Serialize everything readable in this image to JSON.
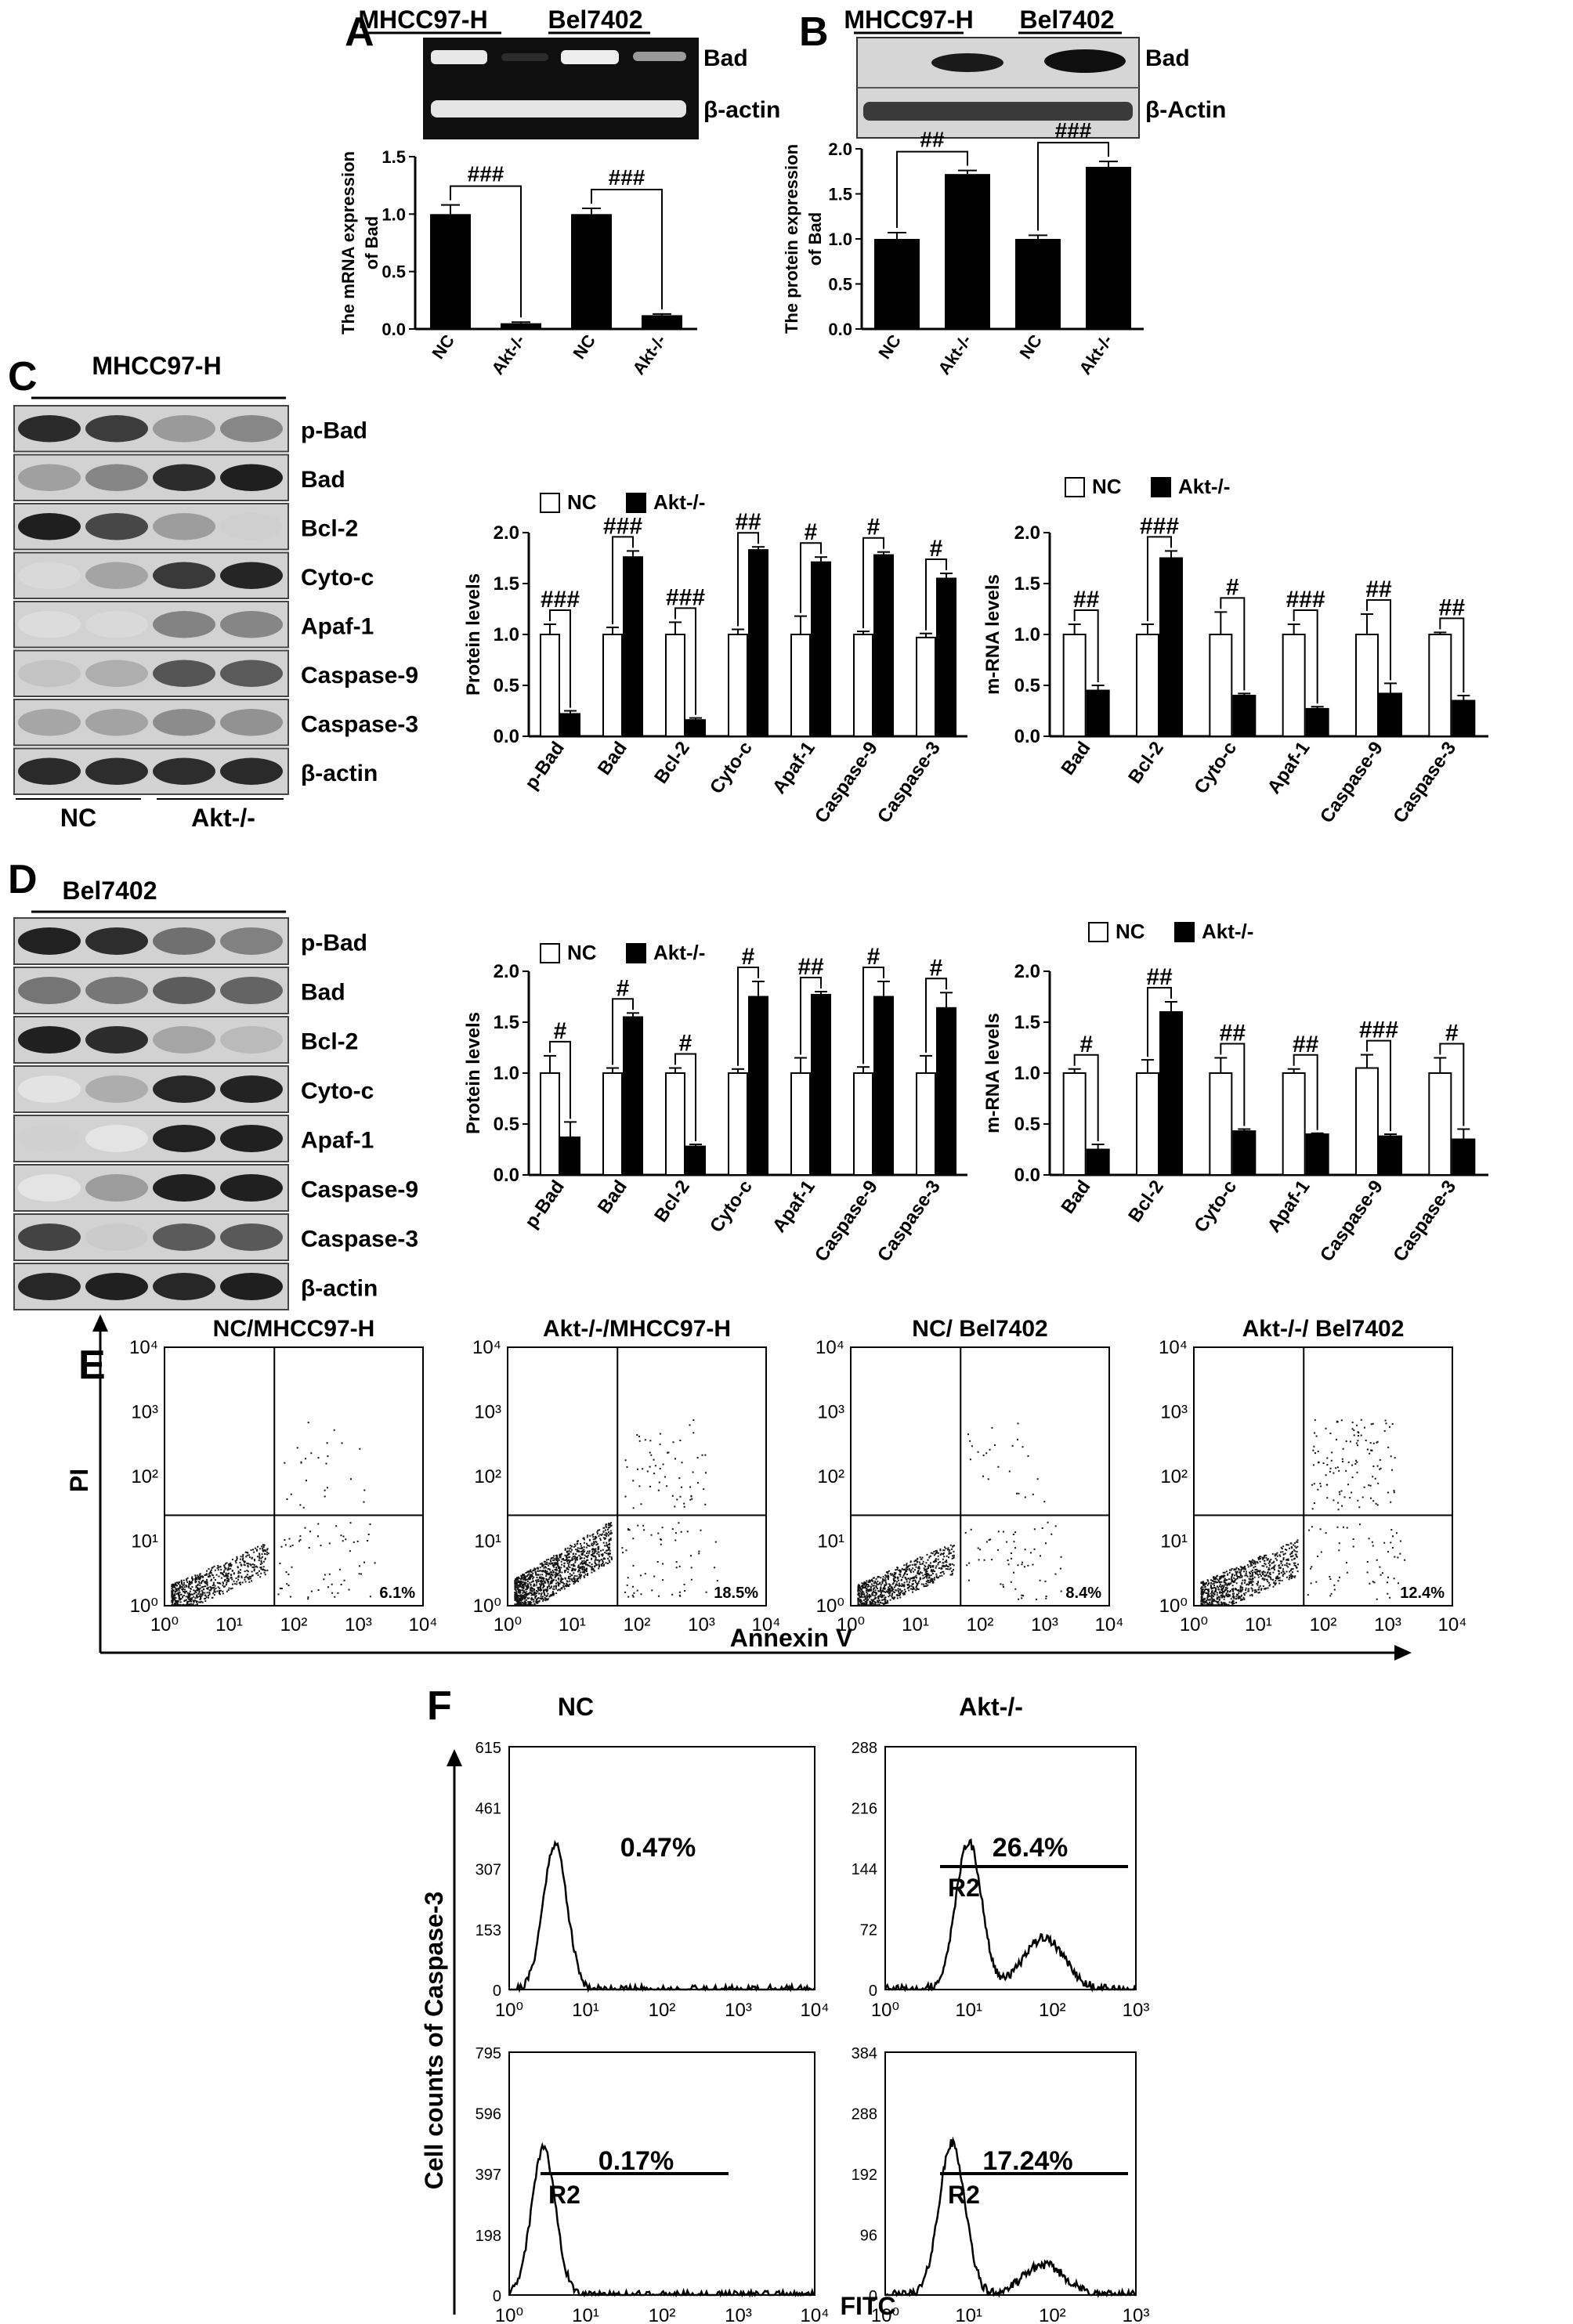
{
  "panel_letters": [
    "A",
    "B",
    "C",
    "D",
    "E",
    "F"
  ],
  "colors": {
    "ink": "#000000",
    "white": "#ffffff",
    "blot_dark": "#1a1a1a",
    "blot_light": "#d8d8d8",
    "gel_bg": "#111111"
  },
  "panel_A": {
    "cell_lines": [
      "MHCC97-H",
      "Bel7402"
    ],
    "band_labels": [
      "Bad",
      "β-actin"
    ],
    "chart_data": {
      "type": "bar",
      "categories": [
        "NC",
        "Akt-/-",
        "NC",
        "Akt-/-"
      ],
      "values": [
        1.0,
        0.05,
        1.0,
        0.12
      ],
      "errors": [
        0.08,
        0.01,
        0.05,
        0.01
      ],
      "ylabel": "The mRNA expression of Bad",
      "ylim": [
        0,
        1.5
      ],
      "yticks": [
        "0.0",
        "0.5",
        "1.0",
        "1.5"
      ],
      "annotations": [
        "###",
        "###"
      ]
    }
  },
  "panel_B": {
    "cell_lines": [
      "MHCC97-H",
      "Bel7402"
    ],
    "band_labels": [
      "Bad",
      "β-Actin"
    ],
    "chart_data": {
      "type": "bar",
      "categories": [
        "NC",
        "Akt-/-",
        "NC",
        "Akt-/-"
      ],
      "values": [
        1.0,
        1.72,
        1.0,
        1.8
      ],
      "errors": [
        0.07,
        0.04,
        0.04,
        0.06
      ],
      "ylabel": "The protein expression of Bad",
      "ylim": [
        0,
        2.0
      ],
      "yticks": [
        "0.0",
        "0.5",
        "1.0",
        "1.5",
        "2.0"
      ],
      "annotations": [
        "##",
        "###"
      ]
    }
  },
  "panel_C": {
    "title": "MHCC97-H",
    "blot_labels": [
      "p-Bad",
      "Bad",
      "Bcl-2",
      "Cyto-c",
      "Apaf-1",
      "Caspase-9",
      "Caspase-3",
      "β-actin"
    ],
    "group_labels": [
      "NC",
      "Akt-/-"
    ],
    "protein_chart": {
      "type": "bar",
      "legend": [
        "NC",
        "Akt-/-"
      ],
      "categories": [
        "p-Bad",
        "Bad",
        "Bcl-2",
        "Cyto-c",
        "Apaf-1",
        "Caspase-9",
        "Caspase-3"
      ],
      "series": [
        {
          "name": "NC",
          "values": [
            1.0,
            1.0,
            1.0,
            1.0,
            1.0,
            1.0,
            0.97
          ],
          "errors": [
            0.1,
            0.07,
            0.12,
            0.05,
            0.18,
            0.03,
            0.04
          ]
        },
        {
          "name": "Akt-/-",
          "values": [
            0.22,
            1.76,
            0.16,
            1.83,
            1.71,
            1.78,
            1.55
          ],
          "errors": [
            0.03,
            0.06,
            0.02,
            0.03,
            0.05,
            0.03,
            0.05
          ]
        }
      ],
      "ylabel": "Protein levels",
      "ylim": [
        0,
        2.0
      ],
      "yticks": [
        "0.0",
        "0.5",
        "1.0",
        "1.5",
        "2.0"
      ],
      "annotations": [
        "###",
        "###",
        "###",
        "##",
        "#",
        "#",
        "#"
      ]
    },
    "mrna_chart": {
      "type": "bar",
      "legend": [
        "NC",
        "Akt-/-"
      ],
      "categories": [
        "Bad",
        "Bcl-2",
        "Cyto-c",
        "Apaf-1",
        "Caspase-9",
        "Caspase-3"
      ],
      "series": [
        {
          "name": "NC",
          "values": [
            1.0,
            1.0,
            1.0,
            1.0,
            1.0,
            1.0
          ],
          "errors": [
            0.1,
            0.1,
            0.22,
            0.1,
            0.2,
            0.02
          ]
        },
        {
          "name": "Akt-/-",
          "values": [
            0.45,
            1.75,
            0.4,
            0.27,
            0.42,
            0.35
          ],
          "errors": [
            0.05,
            0.07,
            0.02,
            0.02,
            0.1,
            0.05
          ]
        }
      ],
      "ylabel": "m-RNA levels",
      "ylim": [
        0,
        2.0
      ],
      "yticks": [
        "0.0",
        "0.5",
        "1.0",
        "1.5",
        "2.0"
      ],
      "annotations": [
        "##",
        "###",
        "#",
        "###",
        "##",
        "##"
      ]
    }
  },
  "panel_D": {
    "title": "Bel7402",
    "blot_labels": [
      "p-Bad",
      "Bad",
      "Bcl-2",
      "Cyto-c",
      "Apaf-1",
      "Caspase-9",
      "Caspase-3",
      "β-actin"
    ],
    "protein_chart": {
      "type": "bar",
      "legend": [
        "NC",
        "Akt-/-"
      ],
      "categories": [
        "p-Bad",
        "Bad",
        "Bcl-2",
        "Cyto-c",
        "Apaf-1",
        "Caspase-9",
        "Caspase-3"
      ],
      "series": [
        {
          "name": "NC",
          "values": [
            1.0,
            1.0,
            1.0,
            1.0,
            1.0,
            1.0,
            1.0
          ],
          "errors": [
            0.17,
            0.05,
            0.05,
            0.04,
            0.15,
            0.06,
            0.17
          ]
        },
        {
          "name": "Akt-/-",
          "values": [
            0.37,
            1.55,
            0.28,
            1.75,
            1.77,
            1.75,
            1.64
          ],
          "errors": [
            0.15,
            0.04,
            0.02,
            0.15,
            0.03,
            0.15,
            0.15
          ]
        }
      ],
      "ylabel": "Protein levels",
      "ylim": [
        0,
        2.0
      ],
      "yticks": [
        "0.0",
        "0.5",
        "1.0",
        "1.5",
        "2.0"
      ],
      "annotations": [
        "#",
        "#",
        "#",
        "#",
        "##",
        "#",
        "#"
      ]
    },
    "mrna_chart": {
      "type": "bar",
      "legend": [
        "NC",
        "Akt-/-"
      ],
      "categories": [
        "Bad",
        "Bcl-2",
        "Cyto-c",
        "Apaf-1",
        "Caspase-9",
        "Caspase-3"
      ],
      "series": [
        {
          "name": "NC",
          "values": [
            1.0,
            1.0,
            1.0,
            1.0,
            1.05,
            1.0
          ],
          "errors": [
            0.04,
            0.13,
            0.15,
            0.04,
            0.13,
            0.15
          ]
        },
        {
          "name": "Akt-/-",
          "values": [
            0.25,
            1.6,
            0.43,
            0.4,
            0.38,
            0.35
          ],
          "errors": [
            0.05,
            0.1,
            0.02,
            0.01,
            0.02,
            0.1
          ]
        }
      ],
      "ylabel": "m-RNA levels",
      "ylim": [
        0,
        2.0
      ],
      "yticks": [
        "0.0",
        "0.5",
        "1.0",
        "1.5",
        "2.0"
      ],
      "annotations": [
        "#",
        "##",
        "##",
        "##",
        "###",
        "#"
      ]
    }
  },
  "panel_E": {
    "chart_data": {
      "type": "scatter",
      "titles": [
        "NC/MHCC97-H",
        "Akt-/-/MHCC97-H",
        "NC/ Bel7402",
        "Akt-/-/ Bel7402"
      ],
      "percentages": [
        "6.1%",
        "18.5%",
        "8.4%",
        "12.4%"
      ],
      "xlabel": "Annexin V",
      "ylabel": "PI",
      "xticks": [
        "10⁰",
        "10¹",
        "10²",
        "10³",
        "10⁴"
      ],
      "yticks": [
        "10⁰",
        "10¹",
        "10²",
        "10³",
        "10⁴"
      ],
      "gates": {
        "x": 50,
        "y": 25
      }
    }
  },
  "panel_F": {
    "chart_data": {
      "type": "area",
      "column_titles": [
        "NC",
        "Akt-/-"
      ],
      "xlabel": "FITC",
      "ylabel": "Cell counts of Caspase-3",
      "xticks_4": [
        "10⁰",
        "10¹",
        "10²",
        "10³",
        "10⁴"
      ],
      "xticks_3": [
        "10⁰",
        "10¹",
        "10²",
        "10³"
      ],
      "histograms": [
        {
          "yticks": [
            "0",
            "153",
            "307",
            "461",
            "615"
          ],
          "ymax": 615,
          "peak_log": 0.6,
          "peak_count": 370,
          "percent": "0.47%",
          "gate": ""
        },
        {
          "yticks": [
            "0",
            "72",
            "144",
            "216",
            "288"
          ],
          "ymax": 288,
          "peak_log": 1.0,
          "peak_count": 175,
          "percent": "26.4%",
          "gate": "R2"
        },
        {
          "yticks": [
            "0",
            "198",
            "397",
            "596",
            "795"
          ],
          "ymax": 795,
          "peak_log": 0.45,
          "peak_count": 480,
          "percent": "0.17%",
          "gate": "R2"
        },
        {
          "yticks": [
            "0",
            "96",
            "192",
            "288",
            "384"
          ],
          "ymax": 384,
          "peak_log": 0.8,
          "peak_count": 240,
          "percent": "17.24%",
          "gate": "R2"
        }
      ]
    }
  }
}
